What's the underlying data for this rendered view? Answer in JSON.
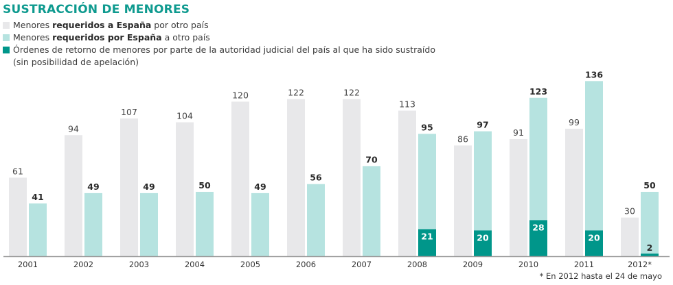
{
  "chart_data": {
    "type": "bar",
    "title": "SUSTRACCIÓN DE MENORES",
    "categories": [
      "2001",
      "2002",
      "2003",
      "2004",
      "2005",
      "2006",
      "2007",
      "2008",
      "2009",
      "2010",
      "2011",
      "2012*"
    ],
    "series": [
      {
        "name": "Menores requeridos a España por otro país",
        "color": "#e8e8ea",
        "values": [
          61,
          94,
          107,
          104,
          120,
          122,
          122,
          113,
          86,
          91,
          99,
          30
        ]
      },
      {
        "name": "Menores requeridos por España a otro país",
        "color": "#b6e3e0",
        "values": [
          41,
          49,
          49,
          50,
          49,
          56,
          70,
          95,
          97,
          123,
          136,
          50
        ]
      },
      {
        "name": "Órdenes de retorno de menores por parte de la autoridad judicial del país al que ha sido sustraído (sin posibilidad de apelación)",
        "color": "#00968a",
        "values": [
          null,
          null,
          null,
          null,
          null,
          null,
          null,
          21,
          20,
          28,
          20,
          2
        ]
      }
    ],
    "xlabel": "",
    "ylabel": "",
    "ylim": [
      0,
      140
    ],
    "grid": false,
    "legend": "top-left",
    "footnote": "* En 2012 hasta el 24 de mayo"
  },
  "legend": [
    {
      "pre": "Menores ",
      "bold": "requeridos a España",
      "post": " por otro país",
      "color": "#e8e8ea"
    },
    {
      "pre": "Menores ",
      "bold": "requeridos por España",
      "post": " a otro país",
      "color": "#b6e3e0"
    },
    {
      "pre": "Órdenes de retorno de menores por parte de la autoridad judicial del país al que ha sido sustraído",
      "bold": "",
      "post": "",
      "line2": "(sin posibilidad de apelación)",
      "color": "#00968a"
    }
  ]
}
